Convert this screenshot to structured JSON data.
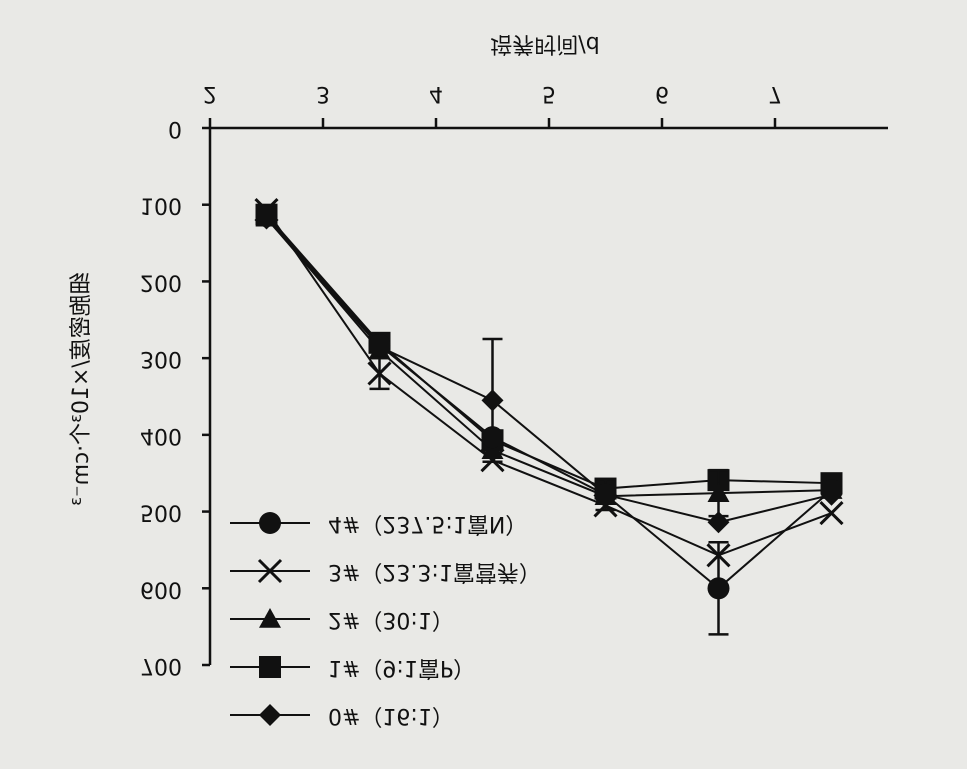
{
  "chart_data": {
    "type": "line",
    "x_label": "培养时间/d",
    "y_label": "细胞密度/×10³个·cm⁻³",
    "xlim": [
      2,
      8
    ],
    "xticks": [
      2,
      3,
      4,
      5,
      6,
      7
    ],
    "ylim": [
      0,
      700
    ],
    "yticks": [
      0,
      100,
      200,
      300,
      400,
      500,
      600,
      700
    ],
    "legend": "upper left",
    "x": [
      2.5,
      3.5,
      4.5,
      5.5,
      6.5,
      7.5
    ],
    "series": [
      {
        "name": "0#（16:1）",
        "marker": "diamond",
        "color": "#111",
        "values": [
          118,
          285,
          355,
          478,
          514,
          478
        ],
        "errors": [
          null,
          null,
          80,
          null,
          null,
          null
        ]
      },
      {
        "name": "1#（9:1富P）",
        "marker": "square",
        "color": "#111",
        "values": [
          113,
          280,
          407,
          470,
          459,
          463
        ],
        "errors": [
          null,
          null,
          null,
          null,
          null,
          null
        ]
      },
      {
        "name": "2#（30:1）",
        "marker": "triangle",
        "color": "#111",
        "values": [
          117,
          290,
          420,
          480,
          476,
          472
        ],
        "errors": [
          null,
          null,
          null,
          null,
          30,
          null
        ]
      },
      {
        "name": "3#（23.3:1富营养）",
        "marker": "x",
        "color": "#111",
        "values": [
          107,
          320,
          433,
          492,
          557,
          502
        ],
        "errors": [
          null,
          20,
          null,
          null,
          null,
          null
        ]
      },
      {
        "name": "4#（237.5:1富N）",
        "marker": "circle",
        "color": "#111",
        "values": [
          115,
          283,
          403,
          478,
          600,
          472
        ],
        "errors": [
          null,
          null,
          null,
          20,
          60,
          null
        ]
      }
    ]
  }
}
